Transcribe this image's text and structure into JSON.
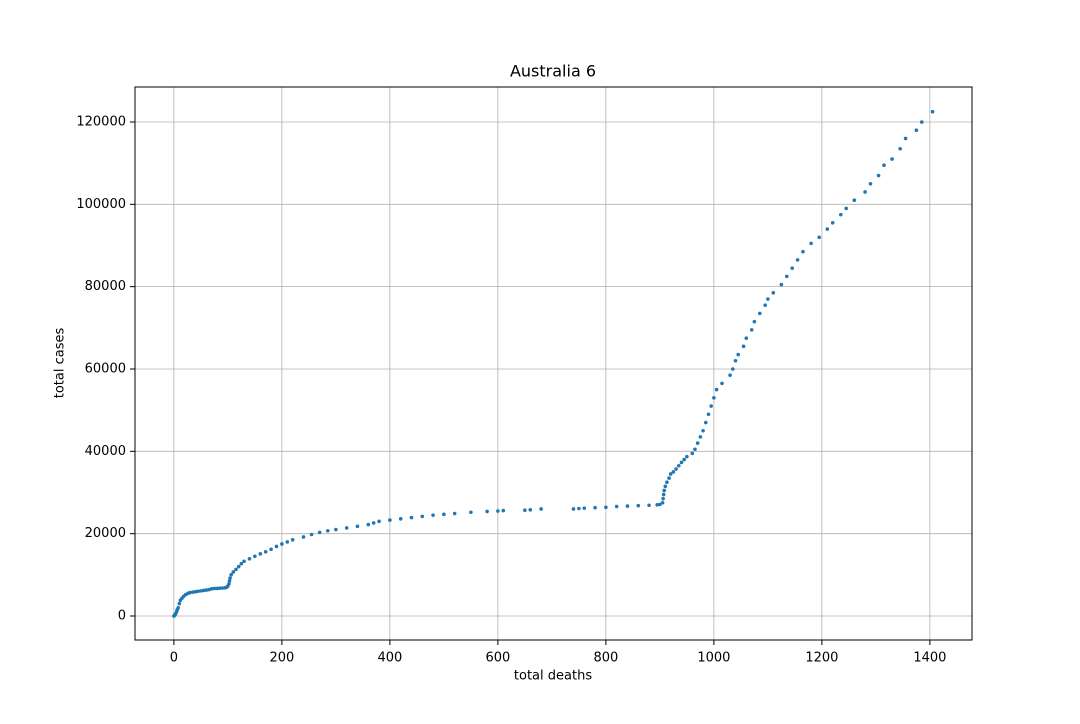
{
  "chart_data": {
    "type": "scatter",
    "title": "Australia 6",
    "x_label": "total deaths",
    "y_label": "total cases",
    "color": "#1f77b4",
    "grid": true,
    "xlim": [
      -72,
      1478
    ],
    "ylim": [
      -5830,
      128500
    ],
    "xticks": [
      0,
      200,
      400,
      600,
      800,
      1000,
      1200,
      1400
    ],
    "yticks": [
      0,
      20000,
      40000,
      60000,
      80000,
      100000,
      120000
    ],
    "x": [
      0,
      1,
      2,
      3,
      5,
      6,
      8,
      10,
      12,
      15,
      18,
      22,
      26,
      30,
      35,
      40,
      45,
      50,
      55,
      60,
      65,
      70,
      75,
      80,
      85,
      90,
      95,
      98,
      100,
      102,
      103,
      104,
      106,
      110,
      115,
      120,
      125,
      130,
      140,
      150,
      160,
      170,
      180,
      190,
      200,
      210,
      220,
      240,
      255,
      270,
      285,
      300,
      320,
      340,
      360,
      370,
      380,
      400,
      420,
      440,
      460,
      480,
      500,
      520,
      550,
      580,
      600,
      610,
      650,
      660,
      680,
      740,
      750,
      760,
      780,
      800,
      820,
      840,
      860,
      880,
      895,
      900,
      905,
      906,
      907,
      908,
      910,
      913,
      917,
      920,
      925,
      930,
      935,
      940,
      945,
      950,
      960,
      965,
      970,
      975,
      980,
      985,
      990,
      995,
      1000,
      1005,
      1015,
      1030,
      1035,
      1040,
      1045,
      1055,
      1060,
      1070,
      1075,
      1085,
      1095,
      1100,
      1110,
      1125,
      1135,
      1145,
      1155,
      1165,
      1180,
      1195,
      1210,
      1220,
      1235,
      1245,
      1260,
      1280,
      1290,
      1305,
      1315,
      1330,
      1345,
      1355,
      1375,
      1385,
      1405
    ],
    "values": [
      0,
      100,
      300,
      500,
      1000,
      1500,
      2000,
      3000,
      3800,
      4300,
      4800,
      5200,
      5500,
      5700,
      5800,
      5900,
      6000,
      6100,
      6200,
      6300,
      6400,
      6600,
      6700,
      6700,
      6750,
      6800,
      6850,
      7000,
      7300,
      7800,
      8500,
      9200,
      10000,
      10700,
      11300,
      12000,
      12700,
      13300,
      13900,
      14500,
      15100,
      15600,
      16200,
      16900,
      17500,
      18000,
      18500,
      19200,
      19800,
      20300,
      20700,
      21000,
      21400,
      21800,
      22200,
      22600,
      23000,
      23300,
      23600,
      23900,
      24200,
      24500,
      24700,
      24900,
      25200,
      25400,
      25500,
      25600,
      25700,
      25800,
      26000,
      26000,
      26100,
      26200,
      26300,
      26400,
      26600,
      26700,
      26800,
      26900,
      27000,
      27100,
      27500,
      28500,
      29500,
      30500,
      31500,
      32500,
      33500,
      34500,
      35000,
      35700,
      36500,
      37300,
      38000,
      38700,
      39500,
      40500,
      42000,
      43500,
      45000,
      47000,
      49000,
      51000,
      53000,
      55000,
      56500,
      58500,
      60000,
      62000,
      63500,
      65500,
      67500,
      69500,
      71500,
      73500,
      75500,
      77000,
      78500,
      80500,
      82500,
      84500,
      86500,
      88500,
      90500,
      92000,
      94000,
      95500,
      97500,
      99000,
      101000,
      103000,
      105000,
      107000,
      109500,
      111000,
      113500,
      116000,
      118000,
      120000,
      122500
    ]
  }
}
